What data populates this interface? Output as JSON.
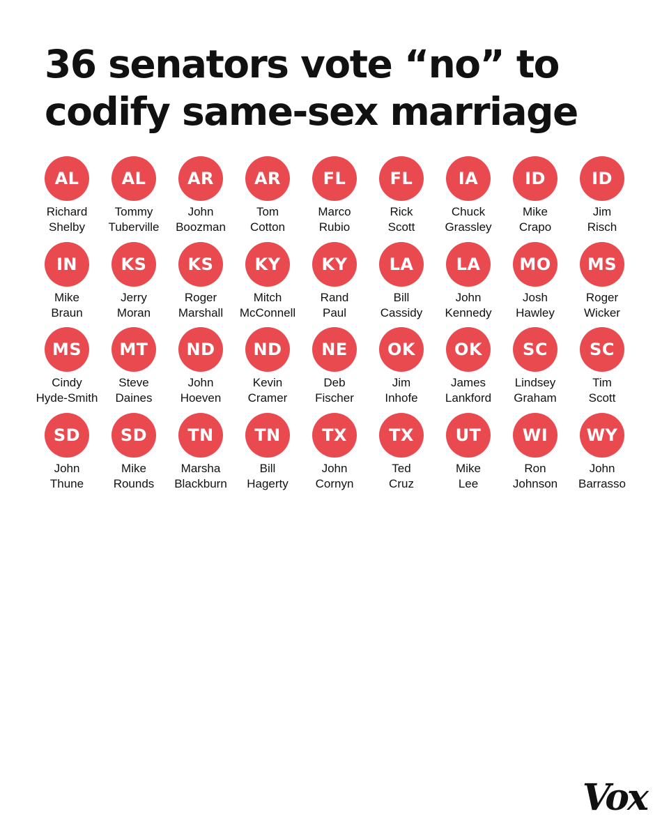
{
  "title": "36 senators vote “no” to codify same-sex marriage",
  "colors": {
    "badge": "#E84A4F",
    "badge_text": "#FFFFFF",
    "text": "#111111",
    "background": "#FFFFFF"
  },
  "senators": [
    {
      "state": "AL",
      "first": "Richard",
      "last": "Shelby"
    },
    {
      "state": "AL",
      "first": "Tommy",
      "last": "Tuberville"
    },
    {
      "state": "AR",
      "first": "John",
      "last": "Boozman"
    },
    {
      "state": "AR",
      "first": "Tom",
      "last": "Cotton"
    },
    {
      "state": "FL",
      "first": "Marco",
      "last": "Rubio"
    },
    {
      "state": "FL",
      "first": "Rick",
      "last": "Scott"
    },
    {
      "state": "IA",
      "first": "Chuck",
      "last": "Grassley"
    },
    {
      "state": "ID",
      "first": "Mike",
      "last": "Crapo"
    },
    {
      "state": "ID",
      "first": "Jim",
      "last": "Risch"
    },
    {
      "state": "IN",
      "first": "Mike",
      "last": "Braun"
    },
    {
      "state": "KS",
      "first": "Jerry",
      "last": "Moran"
    },
    {
      "state": "KS",
      "first": "Roger",
      "last": "Marshall"
    },
    {
      "state": "KY",
      "first": "Mitch",
      "last": "McConnell"
    },
    {
      "state": "KY",
      "first": "Rand",
      "last": "Paul"
    },
    {
      "state": "LA",
      "first": "Bill",
      "last": "Cassidy"
    },
    {
      "state": "LA",
      "first": "John",
      "last": "Kennedy"
    },
    {
      "state": "MO",
      "first": "Josh",
      "last": "Hawley"
    },
    {
      "state": "MS",
      "first": "Roger",
      "last": "Wicker"
    },
    {
      "state": "MS",
      "first": "Cindy",
      "last": "Hyde-Smith"
    },
    {
      "state": "MT",
      "first": "Steve",
      "last": "Daines"
    },
    {
      "state": "ND",
      "first": "John",
      "last": "Hoeven"
    },
    {
      "state": "ND",
      "first": "Kevin",
      "last": "Cramer"
    },
    {
      "state": "NE",
      "first": "Deb",
      "last": "Fischer"
    },
    {
      "state": "OK",
      "first": "Jim",
      "last": "Inhofe"
    },
    {
      "state": "OK",
      "first": "James",
      "last": "Lankford"
    },
    {
      "state": "SC",
      "first": "Lindsey",
      "last": "Graham"
    },
    {
      "state": "SC",
      "first": "Tim",
      "last": "Scott"
    },
    {
      "state": "SD",
      "first": "John",
      "last": "Thune"
    },
    {
      "state": "SD",
      "first": "Mike",
      "last": "Rounds"
    },
    {
      "state": "TN",
      "first": "Marsha",
      "last": "Blackburn"
    },
    {
      "state": "TN",
      "first": "Bill",
      "last": "Hagerty"
    },
    {
      "state": "TX",
      "first": "John",
      "last": "Cornyn"
    },
    {
      "state": "TX",
      "first": "Ted",
      "last": "Cruz"
    },
    {
      "state": "UT",
      "first": "Mike",
      "last": "Lee"
    },
    {
      "state": "WI",
      "first": "Ron",
      "last": "Johnson"
    },
    {
      "state": "WY",
      "first": "John",
      "last": "Barrasso"
    }
  ],
  "logo": "Vox"
}
